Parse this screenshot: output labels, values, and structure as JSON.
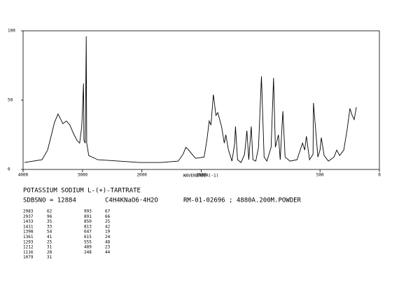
{
  "chart_data": {
    "type": "line",
    "x_axis_label": "WAVENUMBER(-1)",
    "xlim": [
      4000,
      0
    ],
    "xticks": [
      4000,
      3000,
      2000,
      1500,
      500,
      0
    ],
    "x_scale_break": 2000,
    "x_scale_factor_below_break": 2,
    "ylim": [
      0,
      100
    ],
    "yticks": [
      0,
      50,
      100
    ],
    "color": "#000000",
    "x": [
      3976,
      3682,
      3588,
      3529,
      3471,
      3412,
      3376,
      3329,
      3271,
      3212,
      3153,
      3094,
      3047,
      3012,
      2983,
      2976,
      2953,
      2937,
      2929,
      2894,
      2741,
      2388,
      2035,
      1841,
      1694,
      1653,
      1629,
      1606,
      1588,
      1547,
      1476,
      1453,
      1433,
      1418,
      1398,
      1376,
      1361,
      1329,
      1306,
      1293,
      1271,
      1241,
      1218,
      1212,
      1194,
      1165,
      1135,
      1116,
      1100,
      1079,
      1065,
      1041,
      1018,
      993,
      971,
      947,
      912,
      891,
      876,
      850,
      835,
      813,
      794,
      753,
      694,
      647,
      629,
      615,
      588,
      559,
      555,
      518,
      500,
      489,
      465,
      429,
      382,
      359,
      335,
      300,
      271,
      248,
      229,
      212,
      194
    ],
    "values": [
      5,
      7,
      14,
      24,
      34,
      40,
      37,
      33,
      35,
      32,
      26,
      21,
      19,
      31,
      62,
      21,
      19,
      96,
      19,
      10,
      7,
      6,
      5,
      5,
      6,
      11,
      16,
      14,
      12,
      8,
      9,
      21,
      35,
      32,
      54,
      39,
      41,
      31,
      19,
      25,
      14,
      6,
      19,
      31,
      7,
      5,
      11,
      28,
      7,
      31,
      7,
      6,
      16,
      67,
      9,
      6,
      16,
      66,
      16,
      25,
      7,
      42,
      9,
      6,
      7,
      19,
      14,
      24,
      7,
      11,
      48,
      9,
      14,
      23,
      10,
      6,
      9,
      14,
      10,
      14,
      29,
      44,
      39,
      36,
      45
    ],
    "compound": "POTASSIUM SODIUM L-(+)-TARTRATE",
    "sdbs_line": "SDBSNO = 12884",
    "formula": "C4H4KNaO6·4H2O",
    "sample": "RM-01-02696 ; 4880A.200M.POWDER",
    "peak_table": [
      [
        [
          "2983",
          "62"
        ],
        [
          "2937",
          "96"
        ],
        [
          "1433",
          "35"
        ],
        [
          "1411",
          "33"
        ],
        [
          "1398",
          "54"
        ],
        [
          "1361",
          "41"
        ],
        [
          "1293",
          "25"
        ],
        [
          "1212",
          "31"
        ],
        [
          "1116",
          "28"
        ],
        [
          "1079",
          "31"
        ]
      ],
      [
        [
          "993",
          "67"
        ],
        [
          "891",
          "66"
        ],
        [
          "850",
          "25"
        ],
        [
          "813",
          "42"
        ],
        [
          "647",
          "19"
        ],
        [
          "615",
          "24"
        ],
        [
          "555",
          "48"
        ],
        [
          "489",
          "23"
        ],
        [
          "248",
          "44"
        ]
      ]
    ]
  }
}
